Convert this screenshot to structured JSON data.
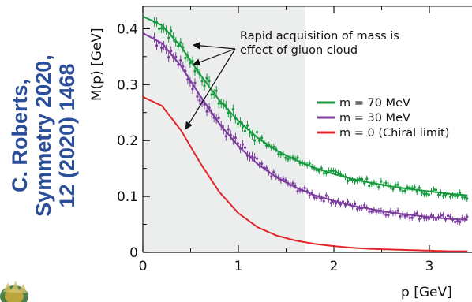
{
  "citation": {
    "line1": "C. Roberts,",
    "line2": "Symmetry 2020,",
    "line3": "12 (2020) 1468"
  },
  "chart_data": {
    "type": "line",
    "xlabel": "p [GeV]",
    "ylabel": "M(p) [GeV]",
    "xlim": [
      0,
      3.4
    ],
    "ylim": [
      0,
      0.44
    ],
    "xticks": [
      0,
      1,
      2,
      3
    ],
    "xtick_labels": [
      "0",
      "1",
      "2",
      "3"
    ],
    "yticks": [
      0,
      0.1,
      0.2,
      0.3,
      0.4
    ],
    "ytick_labels": [
      "0",
      "0.1",
      "0.2",
      "0.3",
      "0.4"
    ],
    "shaded_region": [
      0,
      1.7
    ],
    "annotation": {
      "line1": "Rapid acquisition of mass is",
      "line2": "effect of gluon cloud"
    },
    "legend_position": "right",
    "series": [
      {
        "name": "m = 70 MeV",
        "color": "#179a3f",
        "x": [
          0.0,
          0.2,
          0.4,
          0.6,
          0.8,
          1.0,
          1.2,
          1.4,
          1.6,
          1.8,
          2.0,
          2.2,
          2.4,
          2.6,
          2.8,
          3.0,
          3.2,
          3.4
        ],
        "y": [
          0.422,
          0.406,
          0.368,
          0.318,
          0.272,
          0.235,
          0.205,
          0.182,
          0.165,
          0.151,
          0.14,
          0.131,
          0.124,
          0.118,
          0.113,
          0.109,
          0.105,
          0.102
        ]
      },
      {
        "name": "m = 30 MeV",
        "color": "#7d3d9e",
        "x": [
          0.0,
          0.2,
          0.4,
          0.6,
          0.8,
          1.0,
          1.2,
          1.4,
          1.6,
          1.8,
          2.0,
          2.2,
          2.4,
          2.6,
          2.8,
          3.0,
          3.2,
          3.4
        ],
        "y": [
          0.392,
          0.374,
          0.333,
          0.28,
          0.23,
          0.19,
          0.158,
          0.134,
          0.116,
          0.102,
          0.092,
          0.083,
          0.077,
          0.071,
          0.067,
          0.063,
          0.06,
          0.058
        ]
      },
      {
        "name": "m = 0 (Chiral limit)",
        "color": "#e0242a",
        "x": [
          0.0,
          0.2,
          0.4,
          0.6,
          0.8,
          1.0,
          1.2,
          1.4,
          1.6,
          1.8,
          2.0,
          2.2,
          2.4,
          2.6,
          2.8,
          3.0,
          3.2,
          3.4
        ],
        "y": [
          0.278,
          0.262,
          0.218,
          0.16,
          0.108,
          0.07,
          0.045,
          0.03,
          0.021,
          0.015,
          0.011,
          0.008,
          0.006,
          0.005,
          0.004,
          0.003,
          0.002,
          0.002
        ]
      }
    ]
  }
}
